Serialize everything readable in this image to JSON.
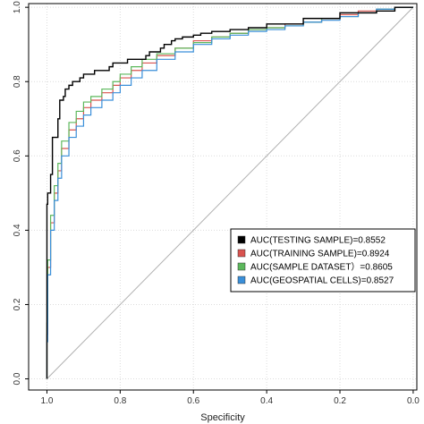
{
  "chart_data": {
    "type": "line",
    "title": "",
    "xlabel": "Specificity",
    "ylabel": "",
    "x_reversed": true,
    "xlim": [
      1.05,
      -0.01
    ],
    "ylim": [
      -0.03,
      1.01
    ],
    "grid": true,
    "legend_position": "bottom-right",
    "x_ticks": [
      1.0,
      0.8,
      0.6,
      0.4,
      0.2,
      0.0
    ],
    "x_tick_labels": [
      "1.0",
      "0.8",
      "0.6",
      "0.4",
      "0.2",
      "0.0"
    ],
    "y_ticks": [
      0.0,
      0.2,
      0.4,
      0.6,
      0.8,
      1.0
    ],
    "y_tick_labels": [
      "0.0",
      "0.2",
      "0.4",
      "0.6",
      "0.8",
      "1.0"
    ],
    "diagonal_reference": true,
    "series": [
      {
        "name": "AUC(TESTING SAMPLE)=0.8552",
        "color": "#000000",
        "x": [
          1.0,
          1.0,
          0.998,
          0.99,
          0.985,
          0.97,
          0.965,
          0.955,
          0.95,
          0.945,
          0.94,
          0.93,
          0.92,
          0.91,
          0.9,
          0.87,
          0.86,
          0.83,
          0.82,
          0.78,
          0.76,
          0.73,
          0.72,
          0.69,
          0.68,
          0.66,
          0.65,
          0.63,
          0.62,
          0.6,
          0.58,
          0.55,
          0.5,
          0.45,
          0.4,
          0.3,
          0.2,
          0.1,
          0.05,
          0.0
        ],
        "y": [
          0.0,
          0.46,
          0.47,
          0.5,
          0.55,
          0.65,
          0.7,
          0.75,
          0.76,
          0.78,
          0.78,
          0.79,
          0.8,
          0.8,
          0.81,
          0.82,
          0.83,
          0.83,
          0.84,
          0.85,
          0.86,
          0.86,
          0.87,
          0.88,
          0.89,
          0.9,
          0.91,
          0.915,
          0.92,
          0.92,
          0.925,
          0.93,
          0.935,
          0.94,
          0.945,
          0.955,
          0.97,
          0.985,
          0.99,
          1.0
        ]
      },
      {
        "name": "AUC(TRAINING SAMPLE)=0.8924",
        "color": "#d9534f",
        "x": [
          1.0,
          0.998,
          0.99,
          0.98,
          0.97,
          0.96,
          0.94,
          0.92,
          0.9,
          0.88,
          0.85,
          0.82,
          0.8,
          0.77,
          0.74,
          0.7,
          0.65,
          0.6,
          0.55,
          0.5,
          0.45,
          0.4,
          0.35,
          0.3,
          0.25,
          0.2,
          0.15,
          0.1,
          0.05,
          0.0
        ],
        "y": [
          0.0,
          0.12,
          0.3,
          0.42,
          0.5,
          0.56,
          0.62,
          0.67,
          0.7,
          0.73,
          0.75,
          0.77,
          0.79,
          0.81,
          0.83,
          0.85,
          0.87,
          0.89,
          0.91,
          0.92,
          0.93,
          0.94,
          0.945,
          0.955,
          0.96,
          0.97,
          0.98,
          0.99,
          0.995,
          1.0
        ]
      },
      {
        "name": "AUC(SAMPLE DATASET）=0.8605",
        "color": "#5cb85c",
        "x": [
          1.0,
          0.998,
          0.99,
          0.98,
          0.97,
          0.96,
          0.94,
          0.92,
          0.9,
          0.88,
          0.85,
          0.82,
          0.8,
          0.77,
          0.74,
          0.7,
          0.65,
          0.6,
          0.55,
          0.5,
          0.45,
          0.4,
          0.35,
          0.3,
          0.25,
          0.2,
          0.15,
          0.1,
          0.05,
          0.0
        ],
        "y": [
          0.0,
          0.15,
          0.32,
          0.44,
          0.52,
          0.58,
          0.64,
          0.69,
          0.72,
          0.745,
          0.76,
          0.78,
          0.8,
          0.82,
          0.84,
          0.86,
          0.875,
          0.89,
          0.905,
          0.92,
          0.93,
          0.94,
          0.945,
          0.95,
          0.96,
          0.97,
          0.975,
          0.985,
          0.995,
          1.0
        ]
      },
      {
        "name": "AUC(GEOSPATIAL CELLS)=0.8527",
        "color": "#3a8fd9",
        "x": [
          1.0,
          0.998,
          0.99,
          0.98,
          0.97,
          0.96,
          0.94,
          0.92,
          0.9,
          0.88,
          0.85,
          0.82,
          0.8,
          0.77,
          0.74,
          0.7,
          0.65,
          0.6,
          0.55,
          0.5,
          0.45,
          0.4,
          0.35,
          0.3,
          0.25,
          0.2,
          0.15,
          0.1,
          0.05,
          0.0
        ],
        "y": [
          0.0,
          0.1,
          0.28,
          0.4,
          0.48,
          0.54,
          0.6,
          0.65,
          0.68,
          0.71,
          0.73,
          0.75,
          0.77,
          0.79,
          0.81,
          0.83,
          0.86,
          0.88,
          0.9,
          0.915,
          0.925,
          0.935,
          0.94,
          0.95,
          0.96,
          0.965,
          0.975,
          0.985,
          0.995,
          1.0
        ]
      }
    ]
  }
}
